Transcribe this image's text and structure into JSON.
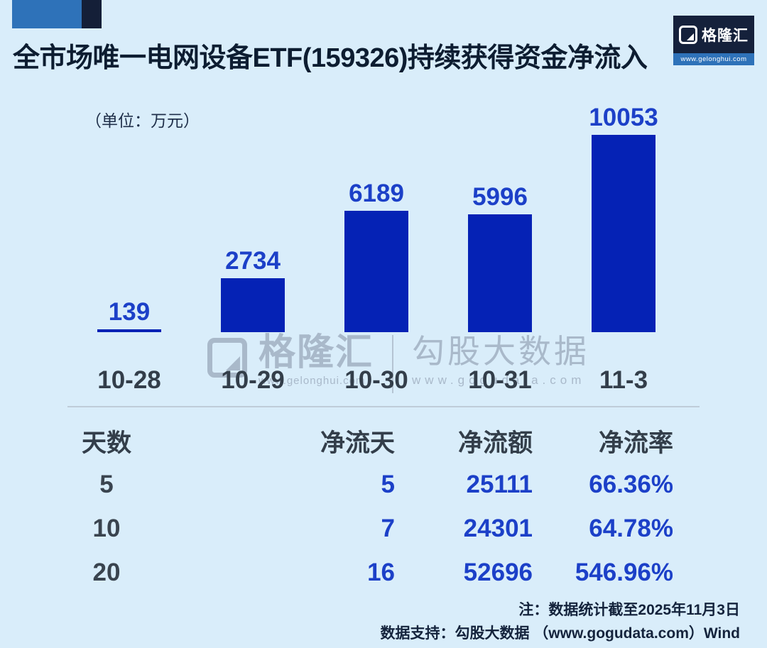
{
  "header": {
    "title": "全市场唯一电网设备ETF(159326)持续获得资金净流入"
  },
  "logo": {
    "monogram": "G",
    "brand": "格隆汇",
    "url": "www.gelonghui.com"
  },
  "chart_data": {
    "type": "bar",
    "title": "全市场唯一电网设备ETF(159326)持续获得资金净流入",
    "unit_label": "（单位：万元）",
    "categories": [
      "10-28",
      "10-29",
      "10-30",
      "10-31",
      "11-3"
    ],
    "values": [
      139,
      2734,
      6189,
      5996,
      10053
    ],
    "ylim": [
      0,
      10053
    ],
    "grid": false,
    "legend": "none",
    "bar_color": "#0522b5",
    "value_label_color": "#1c40c8",
    "background_color": "#d9edfa"
  },
  "table": {
    "headers": [
      "天数",
      "净流天",
      "净流额",
      "净流率"
    ],
    "rows": [
      [
        "5",
        "5",
        "25111",
        "66.36%"
      ],
      [
        "10",
        "7",
        "24301",
        "64.78%"
      ],
      [
        "20",
        "16",
        "52696",
        "546.96%"
      ]
    ]
  },
  "watermark": {
    "brand": "格隆汇",
    "brand_url": "www.gelonghui.com",
    "partner": "勾股大数据",
    "partner_url": "www.gogudata.com"
  },
  "footnotes": {
    "note": "注：数据统计截至2025年11月3日",
    "support": "数据支持：勾股大数据 （www.gogudata.com）Wind"
  }
}
